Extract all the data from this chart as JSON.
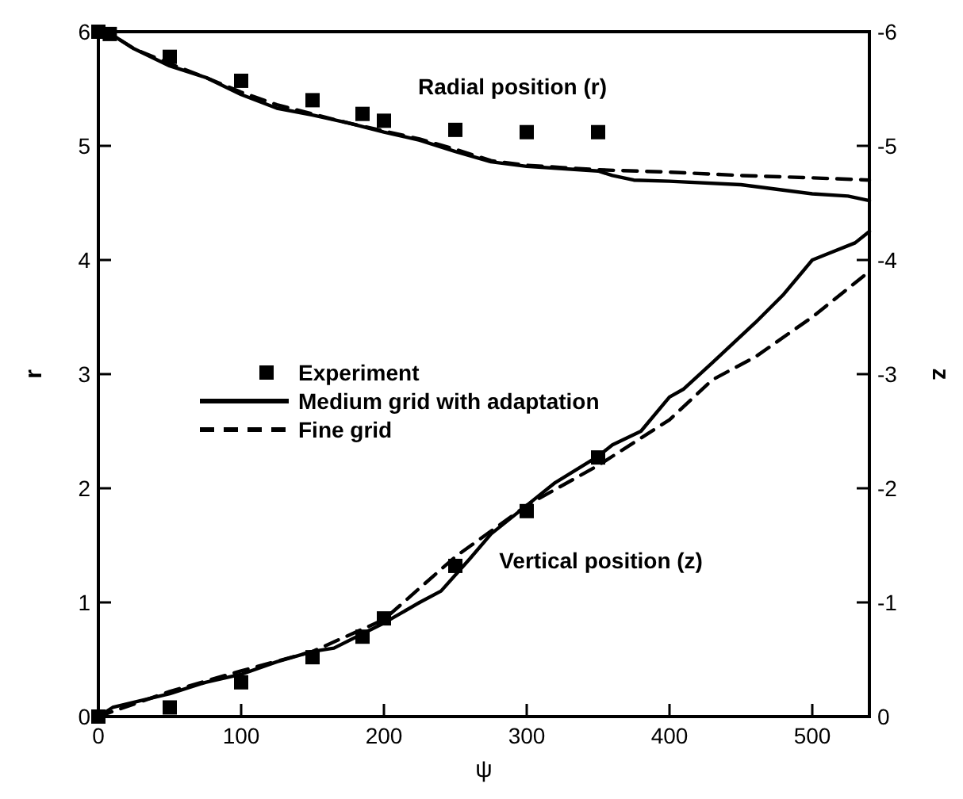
{
  "chart_data": {
    "type": "line",
    "xlabel": "ψ",
    "ylabel": "r",
    "y2label": "z",
    "xlim": [
      0,
      540
    ],
    "xticks": [
      0,
      100,
      200,
      300,
      400,
      500
    ],
    "ylim": [
      0,
      6
    ],
    "yticks": [
      0,
      1,
      2,
      3,
      4,
      5,
      6
    ],
    "y2lim": [
      0,
      -6
    ],
    "y2ticks": [
      0,
      -1,
      -2,
      -3,
      -4,
      -5,
      -6
    ],
    "legend": "left",
    "grid": false,
    "annotations": [
      "Radial position (r)",
      "Vertical position (z)"
    ],
    "series": [
      {
        "name": "Experiment",
        "type": "scatter",
        "marker": "square",
        "color": "#000000",
        "x": [
          0,
          8,
          50,
          100,
          150,
          185,
          200,
          250,
          300,
          350
        ],
        "values": [
          6.0,
          5.98,
          5.78,
          5.57,
          5.4,
          5.28,
          5.22,
          5.14,
          5.12,
          5.12
        ]
      },
      {
        "name": "Medium grid with adaptation",
        "line_style": "solid",
        "color": "#000000",
        "x": [
          0,
          10,
          25,
          50,
          75,
          100,
          125,
          150,
          175,
          200,
          225,
          250,
          275,
          300,
          325,
          350,
          360,
          375,
          400,
          450,
          475,
          500,
          525,
          540
        ],
        "values": [
          6.0,
          5.97,
          5.85,
          5.7,
          5.6,
          5.45,
          5.33,
          5.27,
          5.2,
          5.12,
          5.05,
          4.95,
          4.86,
          4.82,
          4.8,
          4.78,
          4.74,
          4.7,
          4.69,
          4.66,
          4.62,
          4.58,
          4.56,
          4.52
        ]
      },
      {
        "name": "Fine grid",
        "line_style": "dashed",
        "color": "#000000",
        "x": [
          0,
          10,
          25,
          50,
          75,
          100,
          125,
          150,
          175,
          200,
          225,
          250,
          275,
          300,
          325,
          350,
          400,
          450,
          500,
          540
        ],
        "values": [
          6.0,
          5.97,
          5.85,
          5.72,
          5.6,
          5.47,
          5.36,
          5.28,
          5.2,
          5.13,
          5.06,
          4.97,
          4.87,
          4.83,
          4.81,
          4.79,
          4.77,
          4.74,
          4.72,
          4.7
        ]
      },
      {
        "type": "scatter",
        "marker": "square",
        "color": "#000000",
        "axis": "y2",
        "x": [
          0,
          50,
          100,
          150,
          185,
          200,
          250,
          300,
          350
        ],
        "values": [
          0,
          -0.08,
          -0.3,
          -0.52,
          -0.7,
          -0.86,
          -1.32,
          -1.8,
          -2.27
        ]
      },
      {
        "line_style": "solid",
        "color": "#000000",
        "axis": "y2",
        "x": [
          0,
          10,
          50,
          75,
          100,
          125,
          150,
          165,
          200,
          225,
          240,
          260,
          275,
          300,
          320,
          350,
          360,
          380,
          400,
          410,
          430,
          460,
          480,
          500,
          510,
          530,
          540
        ],
        "values": [
          0,
          -0.08,
          -0.2,
          -0.3,
          -0.37,
          -0.48,
          -0.57,
          -0.6,
          -0.82,
          -1.0,
          -1.1,
          -1.38,
          -1.6,
          -1.85,
          -2.05,
          -2.28,
          -2.38,
          -2.5,
          -2.8,
          -2.87,
          -3.1,
          -3.45,
          -3.7,
          -4.0,
          -4.05,
          -4.15,
          -4.25
        ]
      },
      {
        "line_style": "dashed",
        "color": "#000000",
        "axis": "y2",
        "x": [
          0,
          50,
          100,
          150,
          200,
          250,
          300,
          350,
          400,
          430,
          460,
          500,
          540
        ],
        "values": [
          0,
          -0.22,
          -0.4,
          -0.57,
          -0.85,
          -1.4,
          -1.85,
          -2.2,
          -2.6,
          -2.95,
          -3.15,
          -3.5,
          -3.9
        ]
      }
    ]
  }
}
